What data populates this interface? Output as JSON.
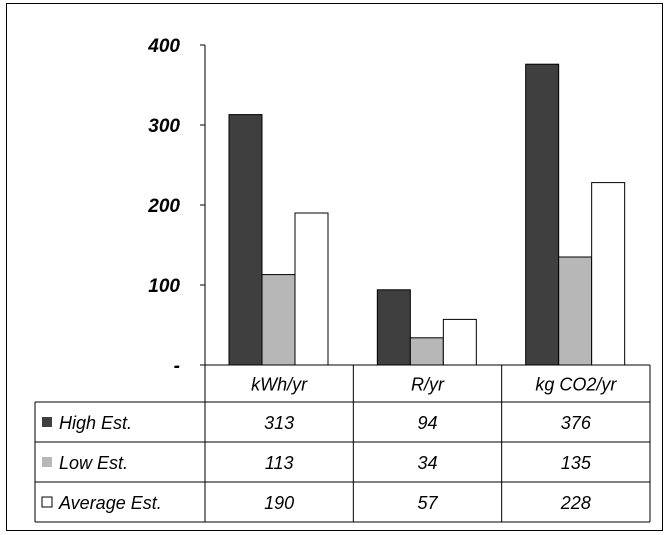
{
  "chart_data": {
    "type": "bar",
    "categories": [
      "kWh/yr",
      "R/yr",
      "kg CO2/yr"
    ],
    "series": [
      {
        "name": "High Est.",
        "values": [
          313,
          94,
          376
        ],
        "color": "#3f3f3f",
        "table": [
          "313",
          "94",
          "376"
        ]
      },
      {
        "name": "Low Est.",
        "values": [
          113,
          34,
          135
        ],
        "color": "#b7b7b7",
        "table": [
          "113",
          "34",
          "135"
        ]
      },
      {
        "name": "Average Est.",
        "values": [
          190,
          57,
          228
        ],
        "color": "#ffffff",
        "table": [
          "190",
          "57",
          "228"
        ]
      }
    ],
    "ylim": [
      0,
      400
    ],
    "yticks": [
      {
        "value": 400,
        "label": "400"
      },
      {
        "value": 300,
        "label": "300"
      },
      {
        "value": 200,
        "label": "200"
      },
      {
        "value": 100,
        "label": "100"
      },
      {
        "value": 0,
        "label": "-"
      }
    ],
    "grid": false,
    "legend": "data-table"
  }
}
